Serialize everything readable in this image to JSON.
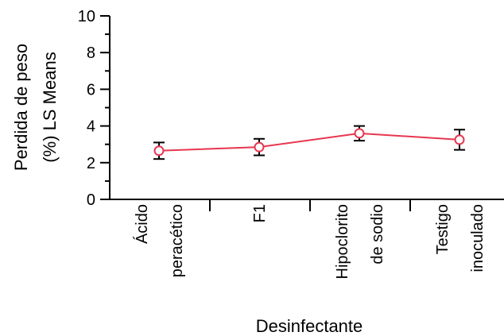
{
  "chart_data": {
    "type": "line",
    "xlabel": "Desinfectante",
    "ylabel_lines": [
      "Perdida de peso",
      "(%) LS Means"
    ],
    "ylim": [
      0,
      10
    ],
    "yticks": [
      "0",
      "2",
      "4",
      "6",
      "8",
      "10"
    ],
    "categories": [
      [
        "Ácido",
        "peracético"
      ],
      [
        "F1"
      ],
      [
        "Hipoclorito",
        "de sodio"
      ],
      [
        "Testigo",
        "inoculado"
      ]
    ],
    "series": [
      {
        "values": [
          2.65,
          2.85,
          3.6,
          3.25
        ],
        "err_low": [
          2.2,
          2.4,
          3.2,
          2.7
        ],
        "err_high": [
          3.1,
          3.3,
          4.0,
          3.8
        ]
      }
    ],
    "colors": {
      "series": "#e8364f",
      "axis": "#000000"
    }
  }
}
